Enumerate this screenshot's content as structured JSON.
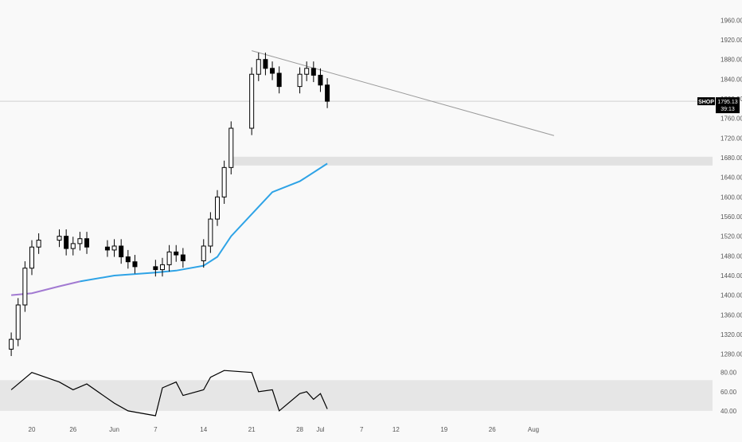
{
  "colors": {
    "background": "#f9f9f9",
    "axis_text": "#555555",
    "candle": "#000000",
    "ma_color": "#2ea3e6",
    "ma_earlier_color": "#a27ad2",
    "trendline": "#9a9a9a",
    "zone": "#e2e2e2",
    "rsi_line": "#000000",
    "rsi_band": "#e6e6e6",
    "price_label_bg": "#000000",
    "price_label_text": "#ffffff"
  },
  "symbol": "SHOP",
  "last_price_label": "1795.13",
  "countdown_label": "39:13",
  "chart_data": [
    {
      "type": "line",
      "panel": "price",
      "y_axis_ticks": [
        "1960.00",
        "1920.00",
        "1880.00",
        "1840.00",
        "1800.00",
        "1760.00",
        "1720.00",
        "1680.00",
        "1640.00",
        "1600.00",
        "1560.00",
        "1520.00",
        "1480.00",
        "1440.00",
        "1400.00",
        "1360.00",
        "1320.00",
        "1280.00"
      ],
      "x_axis_ticks": [
        {
          "date": "2021-05-20",
          "label": "20"
        },
        {
          "date": "2021-05-26",
          "label": "26"
        },
        {
          "date": "2021-06-01",
          "label": "Jun"
        },
        {
          "date": "2021-06-07",
          "label": "7"
        },
        {
          "date": "2021-06-14",
          "label": "14"
        },
        {
          "date": "2021-06-21",
          "label": "21"
        },
        {
          "date": "2021-06-28",
          "label": "28"
        },
        {
          "date": "2021-07-01",
          "label": "Jul"
        },
        {
          "date": "2021-07-07",
          "label": "7"
        },
        {
          "date": "2021-07-12",
          "label": "12"
        },
        {
          "date": "2021-07-19",
          "label": "19"
        },
        {
          "date": "2021-07-26",
          "label": "26"
        },
        {
          "date": "2021-08-01",
          "label": "Aug"
        }
      ],
      "ylim": [
        1255,
        1985
      ],
      "grid": false,
      "series": [
        {
          "style": "price-bars",
          "x": [
            "2021-05-17",
            "2021-05-18",
            "2021-05-19",
            "2021-05-20",
            "2021-05-21",
            "2021-05-24",
            "2021-05-25",
            "2021-05-26",
            "2021-05-27",
            "2021-05-28",
            "2021-05-31",
            "2021-06-01",
            "2021-06-02",
            "2021-06-03",
            "2021-06-04",
            "2021-06-07",
            "2021-06-08",
            "2021-06-09",
            "2021-06-10",
            "2021-06-11",
            "2021-06-14",
            "2021-06-15",
            "2021-06-16",
            "2021-06-17",
            "2021-06-18",
            "2021-06-21",
            "2021-06-22",
            "2021-06-23",
            "2021-06-24",
            "2021-06-25",
            "2021-06-28",
            "2021-06-29",
            "2021-06-30",
            "2021-07-01",
            "2021-07-02"
          ],
          "values": [
            1310,
            1380,
            1455,
            1498,
            1512,
            1520,
            1495,
            1505,
            1515,
            1498,
            1492,
            1500,
            1478,
            1468,
            1458,
            1452,
            1462,
            1488,
            1482,
            1470,
            1500,
            1555,
            1600,
            1660,
            1740,
            1850,
            1880,
            1862,
            1852,
            1825,
            1850,
            1862,
            1848,
            1828,
            1795
          ]
        },
        {
          "style": "moving-average",
          "x": [
            "2021-05-17",
            "2021-05-20",
            "2021-05-24",
            "2021-05-27",
            "2021-06-01",
            "2021-06-07",
            "2021-06-10",
            "2021-06-14",
            "2021-06-16",
            "2021-06-18",
            "2021-06-22",
            "2021-06-24",
            "2021-06-28",
            "2021-07-02"
          ],
          "values": [
            1400,
            1404,
            1418,
            1428,
            1440,
            1446,
            1450,
            1460,
            1478,
            1520,
            1580,
            1610,
            1632,
            1668
          ]
        },
        {
          "style": "trendline",
          "x": [
            "2021-06-21",
            "2021-08-04"
          ],
          "values": [
            1898,
            1725
          ]
        }
      ],
      "zone": {
        "from": 1664,
        "to": 1682,
        "x_start": "2021-06-18"
      }
    },
    {
      "type": "line",
      "panel": "rsi",
      "y_axis_ticks": [
        "80.00",
        "60.00",
        "40.00"
      ],
      "ylim": [
        30,
        88
      ],
      "band": [
        40,
        72
      ],
      "series": [
        {
          "x": [
            "2021-05-17",
            "2021-05-20",
            "2021-05-24",
            "2021-05-26",
            "2021-05-28",
            "2021-06-01",
            "2021-06-03",
            "2021-06-07",
            "2021-06-08",
            "2021-06-10",
            "2021-06-11",
            "2021-06-14",
            "2021-06-15",
            "2021-06-17",
            "2021-06-21",
            "2021-06-22",
            "2021-06-24",
            "2021-06-25",
            "2021-06-28",
            "2021-06-29",
            "2021-06-30",
            "2021-07-01",
            "2021-07-02"
          ],
          "values": [
            62,
            80,
            70,
            62,
            68,
            48,
            40,
            35,
            64,
            70,
            56,
            62,
            75,
            82,
            80,
            60,
            62,
            40,
            58,
            60,
            52,
            58,
            42
          ]
        }
      ]
    }
  ]
}
